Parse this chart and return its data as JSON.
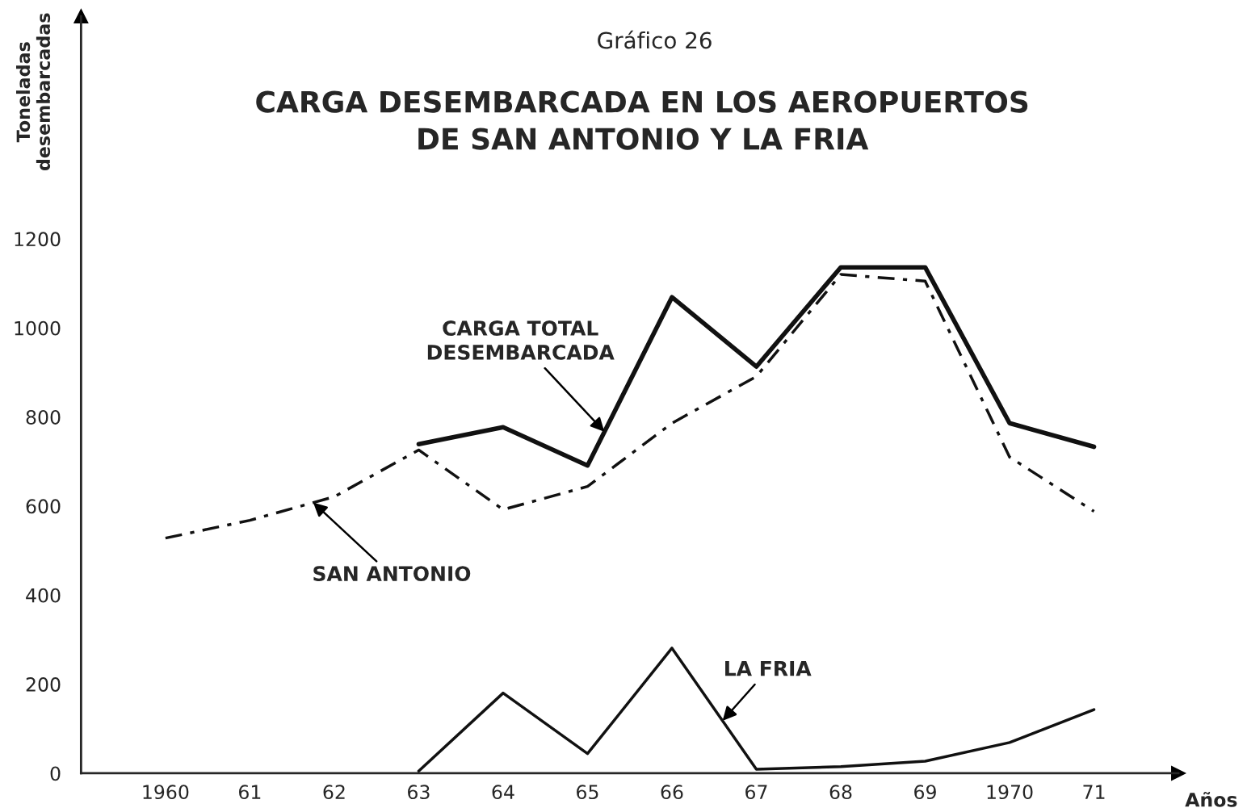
{
  "chart_data": {
    "type": "line",
    "subtitle": "Gráfico 26",
    "title": "CARGA DESEMBARCADA EN LOS AEROPUERTOS\nDE SAN ANTONIO Y LA FRIA",
    "ylabel": "Toneladas\ndesembarcadas",
    "xlabel": "Años",
    "x": [
      1960,
      1961,
      1962,
      1963,
      1964,
      1965,
      1966,
      1967,
      1968,
      1969,
      1970,
      1971
    ],
    "series": [
      {
        "color": "#111111",
        "line_style": "solid",
        "values": [
          null,
          null,
          null,
          739,
          777,
          691,
          1069,
          913,
          1136,
          1136,
          786,
          733
        ]
      },
      {
        "color": "#111111",
        "line_style": "dashdot",
        "values": [
          528,
          568,
          621,
          726,
          592,
          644,
          786,
          891,
          1120,
          1105,
          710,
          588
        ]
      },
      {
        "color": "#111111",
        "line_style": "solid",
        "values": [
          null,
          null,
          null,
          5,
          180,
          44,
          281,
          9,
          15,
          27,
          69,
          143
        ]
      }
    ],
    "annotations": [
      {
        "text": "CARGA TOTAL\nDESEMBARCADA",
        "x": 1965.2,
        "y": 767
      },
      {
        "text": "SAN ANTONIO",
        "x": 1961.75,
        "y": 608
      },
      {
        "text": "LA FRIA",
        "x": 1966.6,
        "y": 118
      }
    ],
    "xlim": [
      1959,
      1972
    ],
    "xticks": [
      {
        "value": 1960,
        "label": "1960"
      },
      {
        "value": 1961,
        "label": "61"
      },
      {
        "value": 1962,
        "label": "62"
      },
      {
        "value": 1963,
        "label": "63"
      },
      {
        "value": 1964,
        "label": "64"
      },
      {
        "value": 1965,
        "label": "65"
      },
      {
        "value": 1966,
        "label": "66"
      },
      {
        "value": 1967,
        "label": "67"
      },
      {
        "value": 1968,
        "label": "68"
      },
      {
        "value": 1969,
        "label": "69"
      },
      {
        "value": 1970,
        "label": "1970"
      },
      {
        "value": 1971,
        "label": "71"
      }
    ],
    "ylim": [
      0,
      1700
    ],
    "yticks": [
      0,
      200,
      400,
      600,
      800,
      1000,
      1200
    ],
    "grid": false,
    "legend": false
  }
}
